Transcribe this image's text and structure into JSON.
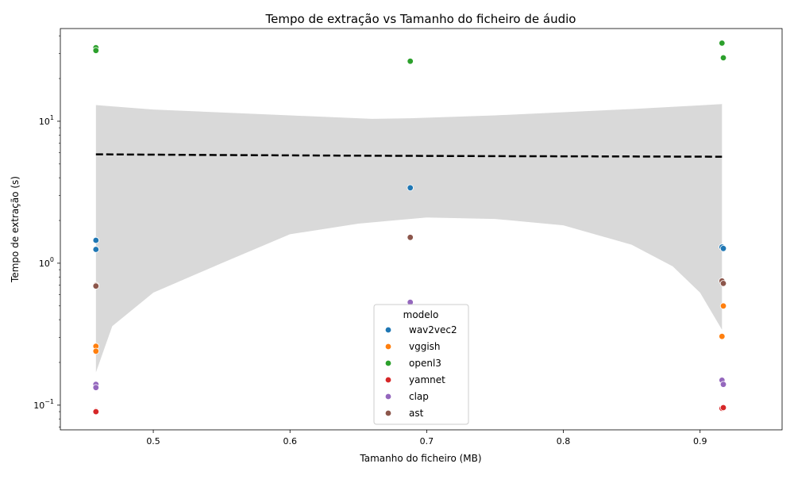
{
  "chart_data": {
    "type": "scatter",
    "title": "Tempo de extração vs Tamanho do ficheiro de áudio",
    "xlabel": "Tamanho do ficheiro (MB)",
    "ylabel": "Tempo de extração (s)",
    "xlim": [
      0.432,
      0.96
    ],
    "ylim": [
      0.067,
      45
    ],
    "yscale": "log",
    "x_ticks": [
      {
        "value": 0.5,
        "label": "0.5"
      },
      {
        "value": 0.6,
        "label": "0.6"
      },
      {
        "value": 0.7,
        "label": "0.7"
      },
      {
        "value": 0.8,
        "label": "0.8"
      },
      {
        "value": 0.9,
        "label": "0.9"
      }
    ],
    "y_ticks": [
      {
        "value": 0.1,
        "base": "10",
        "exp": "−1"
      },
      {
        "value": 1,
        "base": "10",
        "exp": "0"
      },
      {
        "value": 10,
        "base": "10",
        "exp": "1"
      }
    ],
    "grid": false,
    "legend": {
      "title": "modelo",
      "placement": "lower-center"
    },
    "series": [
      {
        "name": "wav2vec2",
        "color": "#1f77b4",
        "points": [
          [
            0.458,
            1.45
          ],
          [
            0.458,
            1.25
          ],
          [
            0.688,
            3.4
          ],
          [
            0.916,
            1.3
          ],
          [
            0.917,
            1.27
          ]
        ]
      },
      {
        "name": "vggish",
        "color": "#ff7f0e",
        "points": [
          [
            0.458,
            0.26
          ],
          [
            0.458,
            0.24
          ],
          [
            0.688,
            0.53
          ],
          [
            0.916,
            0.305
          ],
          [
            0.917,
            0.5
          ]
        ]
      },
      {
        "name": "openl3",
        "color": "#2ca02c",
        "points": [
          [
            0.458,
            33.0
          ],
          [
            0.458,
            31.5
          ],
          [
            0.688,
            26.5
          ],
          [
            0.916,
            35.5
          ],
          [
            0.917,
            28.0
          ]
        ]
      },
      {
        "name": "yamnet",
        "color": "#d62728",
        "points": [
          [
            0.458,
            0.091
          ],
          [
            0.458,
            0.09
          ],
          [
            0.688,
            0.53
          ],
          [
            0.916,
            0.095
          ],
          [
            0.917,
            0.096
          ]
        ]
      },
      {
        "name": "clap",
        "color": "#9467bd",
        "points": [
          [
            0.458,
            0.14
          ],
          [
            0.458,
            0.133
          ],
          [
            0.688,
            0.53
          ],
          [
            0.916,
            0.15
          ],
          [
            0.917,
            0.14
          ]
        ]
      },
      {
        "name": "ast",
        "color": "#8c564b",
        "points": [
          [
            0.458,
            0.7
          ],
          [
            0.458,
            0.69
          ],
          [
            0.688,
            1.52
          ],
          [
            0.916,
            0.75
          ],
          [
            0.917,
            0.72
          ]
        ]
      }
    ],
    "regression": {
      "color": "#000000",
      "line": [
        [
          0.458,
          5.85
        ],
        [
          0.55,
          5.78
        ],
        [
          0.65,
          5.72
        ],
        [
          0.75,
          5.68
        ],
        [
          0.85,
          5.65
        ],
        [
          0.916,
          5.63
        ]
      ],
      "band_color": "#d9d9d9",
      "band_upper": [
        [
          0.458,
          13.0
        ],
        [
          0.5,
          12.1
        ],
        [
          0.6,
          11.0
        ],
        [
          0.66,
          10.4
        ],
        [
          0.688,
          10.5
        ],
        [
          0.75,
          11.0
        ],
        [
          0.85,
          12.2
        ],
        [
          0.916,
          13.2
        ]
      ],
      "band_lower": [
        [
          0.458,
          0.17
        ],
        [
          0.47,
          0.36
        ],
        [
          0.5,
          0.62
        ],
        [
          0.55,
          1.0
        ],
        [
          0.6,
          1.6
        ],
        [
          0.65,
          1.9
        ],
        [
          0.7,
          2.1
        ],
        [
          0.75,
          2.05
        ],
        [
          0.8,
          1.85
        ],
        [
          0.85,
          1.35
        ],
        [
          0.88,
          0.95
        ],
        [
          0.9,
          0.62
        ],
        [
          0.916,
          0.34
        ]
      ]
    }
  }
}
